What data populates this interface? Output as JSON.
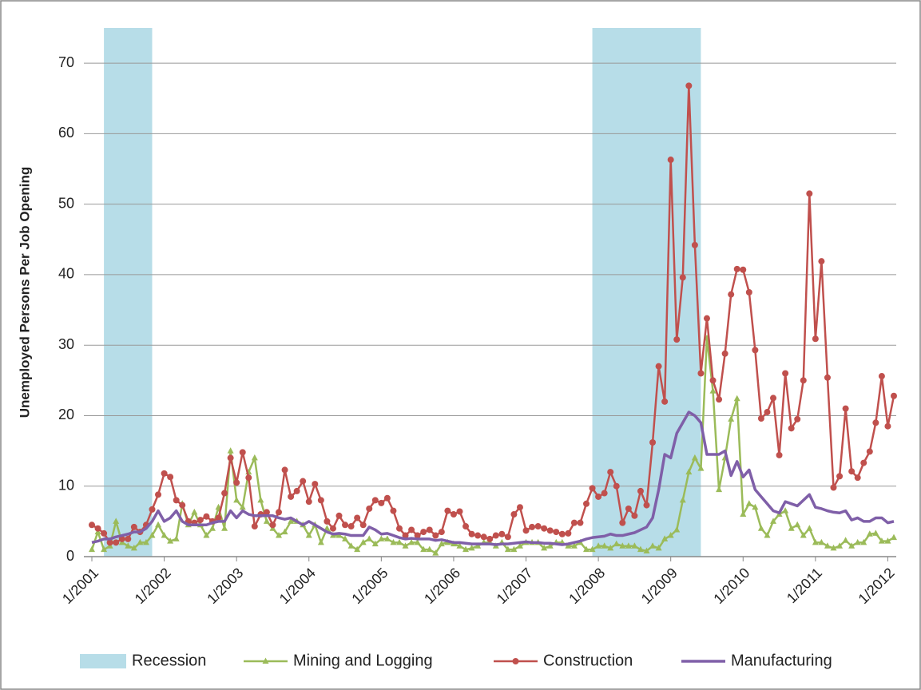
{
  "chart_data": {
    "type": "line",
    "y_label": "Unemployed Persons Per Job Opening",
    "x": [
      "1/2001",
      "2/2001",
      "3/2001",
      "4/2001",
      "5/2001",
      "6/2001",
      "7/2001",
      "8/2001",
      "9/2001",
      "10/2001",
      "11/2001",
      "12/2001",
      "1/2002",
      "2/2002",
      "3/2002",
      "4/2002",
      "5/2002",
      "6/2002",
      "7/2002",
      "8/2002",
      "9/2002",
      "10/2002",
      "11/2002",
      "12/2002",
      "1/2003",
      "2/2003",
      "3/2003",
      "4/2003",
      "5/2003",
      "6/2003",
      "7/2003",
      "8/2003",
      "9/2003",
      "10/2003",
      "11/2003",
      "12/2003",
      "1/2004",
      "2/2004",
      "3/2004",
      "4/2004",
      "5/2004",
      "6/2004",
      "7/2004",
      "8/2004",
      "9/2004",
      "10/2004",
      "11/2004",
      "12/2004",
      "1/2005",
      "2/2005",
      "3/2005",
      "4/2005",
      "5/2005",
      "6/2005",
      "7/2005",
      "8/2005",
      "9/2005",
      "10/2005",
      "11/2005",
      "12/2005",
      "1/2006",
      "2/2006",
      "3/2006",
      "4/2006",
      "5/2006",
      "6/2006",
      "7/2006",
      "8/2006",
      "9/2006",
      "10/2006",
      "11/2006",
      "12/2006",
      "1/2007",
      "2/2007",
      "3/2007",
      "4/2007",
      "5/2007",
      "6/2007",
      "7/2007",
      "8/2007",
      "9/2007",
      "10/2007",
      "11/2007",
      "12/2007",
      "1/2008",
      "2/2008",
      "3/2008",
      "4/2008",
      "5/2008",
      "6/2008",
      "7/2008",
      "8/2008",
      "9/2008",
      "10/2008",
      "11/2008",
      "12/2008",
      "1/2009",
      "2/2009",
      "3/2009",
      "4/2009",
      "5/2009",
      "6/2009",
      "7/2009",
      "8/2009",
      "9/2009",
      "10/2009",
      "11/2009",
      "12/2009",
      "1/2010",
      "2/2010",
      "3/2010",
      "4/2010",
      "5/2010",
      "6/2010",
      "7/2010",
      "8/2010",
      "9/2010",
      "10/2010",
      "11/2010",
      "12/2010",
      "1/2011",
      "2/2011",
      "3/2011",
      "4/2011",
      "5/2011",
      "6/2011",
      "7/2011",
      "8/2011",
      "9/2011",
      "10/2011",
      "11/2011",
      "12/2011",
      "1/2012",
      "2/2012"
    ],
    "xticks": [
      "1/2001",
      "1/2002",
      "1/2003",
      "1/2004",
      "1/2005",
      "1/2006",
      "1/2007",
      "1/2008",
      "1/2009",
      "1/2010",
      "1/2011",
      "1/2012"
    ],
    "shading": {
      "name": "Recession",
      "color": "#b7dde8",
      "periods": [
        [
          "3/2001",
          "11/2001"
        ],
        [
          "12/2007",
          "6/2009"
        ]
      ]
    },
    "series": [
      {
        "name": "Mining and Logging",
        "color": "#9bbb59",
        "marker": "triangle",
        "values": [
          1,
          3.5,
          1,
          1.5,
          5,
          2,
          1.5,
          1.2,
          2,
          2,
          3,
          4.5,
          3,
          2.2,
          2.5,
          7.5,
          4.5,
          6.3,
          4.5,
          3,
          4,
          7,
          4,
          15,
          8,
          7,
          12,
          14,
          8,
          5,
          4,
          3,
          3.5,
          5,
          5,
          4.5,
          3,
          4.5,
          2,
          4,
          3,
          3,
          2.5,
          1.5,
          1,
          2,
          2.5,
          1.8,
          2.5,
          2.5,
          2,
          2,
          1.5,
          2,
          2,
          1,
          1,
          0.5,
          1.8,
          2,
          1.8,
          1.5,
          1,
          1.2,
          1.5,
          2,
          2,
          1.5,
          2,
          1,
          1,
          1.5,
          2,
          2,
          2,
          1.2,
          1.5,
          2,
          2,
          1.5,
          1.5,
          2,
          1,
          1,
          1.5,
          1.5,
          1.2,
          1.8,
          1.5,
          1.5,
          1.5,
          1,
          0.8,
          1.5,
          1.2,
          2.5,
          3,
          3.8,
          8,
          12,
          14,
          12.5,
          31,
          23.5,
          9.5,
          14,
          19.5,
          22.4,
          6,
          7.5,
          7,
          4,
          3,
          5,
          6,
          6.5,
          4,
          4.5,
          3,
          4,
          2,
          2,
          1.5,
          1.2,
          1.5,
          2.3,
          1.5,
          2,
          2,
          3.2,
          3.3,
          2.2,
          2.2,
          2.7
        ]
      },
      {
        "name": "Construction",
        "color": "#c0504d",
        "marker": "circle",
        "values": [
          4.5,
          4,
          3.3,
          2,
          2,
          2.5,
          2.5,
          4.2,
          3.5,
          4.5,
          6.7,
          8.8,
          11.8,
          11.3,
          8,
          7.3,
          5,
          4.8,
          5.2,
          5.7,
          5,
          5.5,
          9,
          14,
          10.5,
          14.8,
          11.2,
          4.3,
          6,
          6.3,
          4.5,
          6.3,
          12.3,
          8.5,
          9.3,
          10.7,
          7.8,
          10.3,
          8,
          5,
          4,
          5.8,
          4.5,
          4.3,
          5.5,
          4.5,
          6.8,
          8,
          7.6,
          8.3,
          6.5,
          4,
          3,
          3.8,
          3,
          3.5,
          3.8,
          3,
          3.5,
          6.5,
          6,
          6.4,
          4.3,
          3.2,
          3,
          2.8,
          2.5,
          3,
          3.2,
          2.8,
          6,
          7,
          3.7,
          4.2,
          4.3,
          4,
          3.7,
          3.5,
          3.2,
          3.3,
          4.8,
          4.8,
          7.5,
          9.7,
          8.5,
          9,
          12,
          10,
          4.8,
          6.8,
          5.8,
          9.3,
          7.3,
          16.2,
          27,
          22,
          56.3,
          30.8,
          39.6,
          66.8,
          44.2,
          26,
          33.8,
          25,
          22.3,
          28.8,
          37.2,
          40.8,
          40.7,
          37.5,
          29.3,
          19.6,
          20.5,
          22.5,
          14.4,
          26,
          18.2,
          19.5,
          25,
          51.5,
          30.9,
          41.9,
          25.4,
          9.8,
          11.4,
          21,
          12.1,
          11.2,
          13.3,
          14.9,
          19,
          25.6,
          18.5,
          22.8
        ]
      },
      {
        "name": "Manufacturing",
        "color": "#7f5fa8",
        "marker": "none",
        "values": [
          2,
          2.2,
          2.5,
          2.5,
          2.8,
          3,
          3.2,
          3.5,
          3.5,
          4,
          5,
          6.5,
          5,
          5.5,
          6.5,
          5,
          4.5,
          4.5,
          4.5,
          4.5,
          4.8,
          5,
          5,
          6.5,
          5.5,
          6.5,
          6,
          5.8,
          5.8,
          5.8,
          5.8,
          5.5,
          5.3,
          5.5,
          5,
          4.5,
          5,
          4.5,
          4,
          3.5,
          3.2,
          3.3,
          3.2,
          3,
          3,
          3,
          4.2,
          3.8,
          3.2,
          3.3,
          3,
          2.7,
          2.5,
          2.6,
          2.5,
          2.5,
          2.5,
          2.3,
          2.4,
          2.2,
          2,
          2,
          1.9,
          1.8,
          1.8,
          1.8,
          1.8,
          1.7,
          1.8,
          1.8,
          1.9,
          2,
          2.1,
          2,
          2,
          1.9,
          1.9,
          1.8,
          1.7,
          1.8,
          2,
          2.2,
          2.5,
          2.7,
          2.8,
          2.9,
          3.2,
          3,
          3,
          3.2,
          3.4,
          3.8,
          4.2,
          5.5,
          9.5,
          14.5,
          14,
          17.5,
          19,
          20.5,
          20,
          19,
          14.5,
          14.5,
          14.5,
          15,
          11.5,
          13.5,
          11.3,
          12.3,
          9.5,
          8.5,
          7.5,
          6.5,
          6.2,
          7.8,
          7.5,
          7.2,
          8,
          8.8,
          7,
          6.8,
          6.5,
          6.3,
          6.2,
          6.5,
          5.2,
          5.5,
          5,
          5,
          5.5,
          5.5,
          4.8,
          5
        ]
      }
    ],
    "ylim": [
      0,
      75
    ],
    "yticks": [
      0,
      10,
      20,
      30,
      40,
      50,
      60,
      70
    ],
    "grid": true
  }
}
